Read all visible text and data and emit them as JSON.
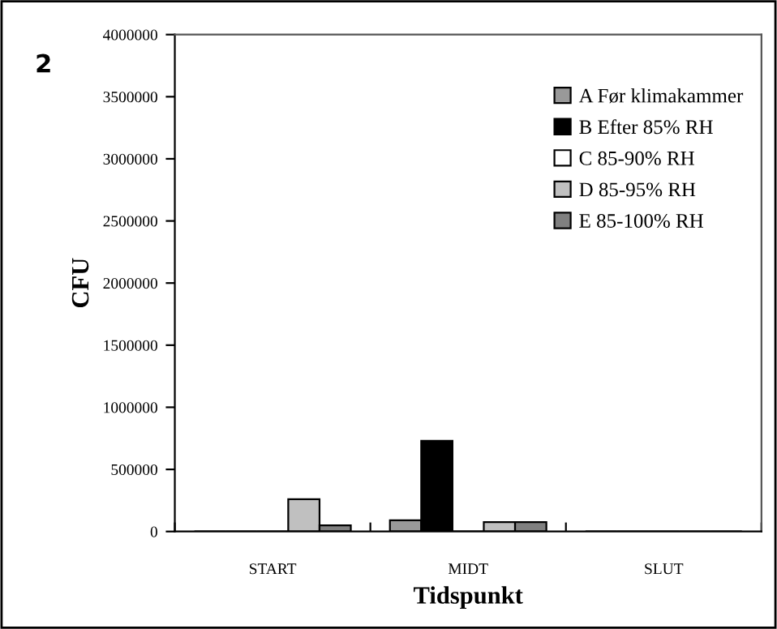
{
  "chart_data": {
    "type": "bar",
    "xlabel": "Tidspunkt",
    "ylabel": "CFU",
    "categories": [
      "START",
      "MIDT",
      "SLUT"
    ],
    "series": [
      {
        "name": "A Før klimakammer",
        "color": "#999999",
        "values": [
          0,
          90000,
          0
        ]
      },
      {
        "name": "B Efter 85% RH",
        "color": "#000000",
        "values": [
          0,
          730000,
          0
        ]
      },
      {
        "name": "C 85-90% RH",
        "color": "#ffffff",
        "values": [
          0,
          0,
          0
        ]
      },
      {
        "name": "D 85-95% RH",
        "color": "#c0c0c0",
        "values": [
          260000,
          75000,
          0
        ]
      },
      {
        "name": "E 85-100% RH",
        "color": "#808080",
        "values": [
          50000,
          75000,
          0
        ]
      }
    ],
    "ylim": [
      0,
      4000000
    ],
    "yticks": [
      0,
      500000,
      1000000,
      1500000,
      2000000,
      2500000,
      3000000,
      3500000,
      4000000
    ],
    "grid": false,
    "legend": "top right",
    "annotations": [
      "2"
    ]
  }
}
